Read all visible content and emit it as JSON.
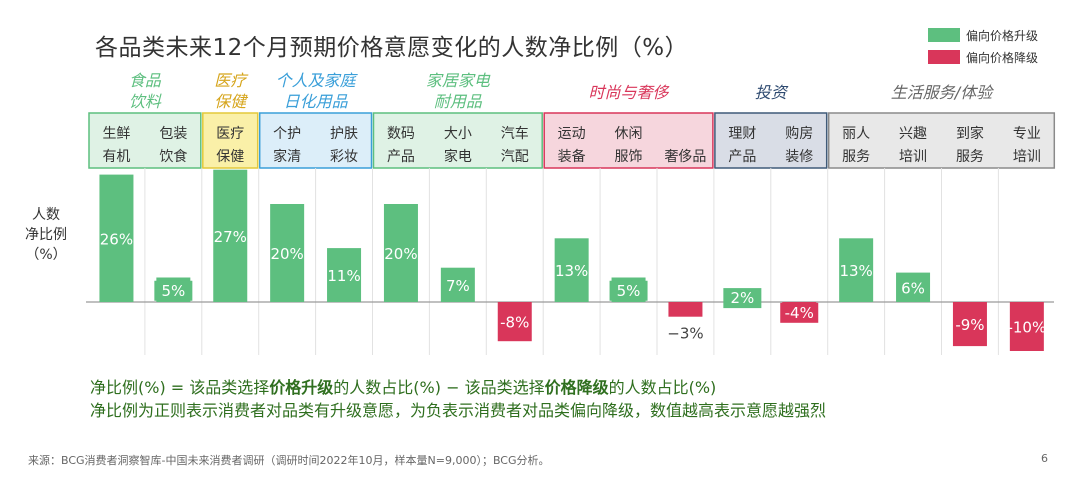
{
  "title": "各品类未来12个月预期价格意愿变化的人数净比例（%）",
  "legend": [
    {
      "label": "偏向价格升级",
      "color": "#5dbf7f"
    },
    {
      "label": "偏向价格降级",
      "color": "#d9365a"
    }
  ],
  "ylabel": {
    "line1": "人数",
    "line2": "净比例",
    "line3": "（%）"
  },
  "formula": {
    "line1_a": "净比例(%) = 该品类选择",
    "line1_b": "价格升级",
    "line1_c": "的人数占比(%) − 该品类选择",
    "line1_d": "价格降级",
    "line1_e": "的人数占比(%)",
    "line2": "净比例为正则表示消费者对品类有升级意愿，为负表示消费者对品类偏向降级，数值越高表示意愿越强烈"
  },
  "source": "来源：BCG消费者洞察智库-中国未来消费者调研（调研时间2022年10月，样本量N=9,000）；BCG分析。",
  "page_number": "6",
  "chart_data": {
    "type": "bar",
    "title": "各品类未来12个月预期价格意愿变化的人数净比例（%）",
    "ylabel": "人数净比例（%）",
    "ylim": [
      -12,
      30
    ],
    "positive_color": "#5dbf7f",
    "negative_color": "#d9365a",
    "groups": [
      {
        "name": [
          "食品",
          "饮料"
        ],
        "color": "#5dbf7f",
        "fill": "#dff2e5",
        "name_color": "#5dbf7f",
        "count": 2
      },
      {
        "name": [
          "医疗",
          "保健"
        ],
        "color": "#e3c93a",
        "fill": "#faf0a8",
        "name_color": "#d6a51c",
        "count": 1
      },
      {
        "name": [
          "个人及家庭",
          "日化用品"
        ],
        "color": "#3a9fd9",
        "fill": "#dceef9",
        "name_color": "#3a9fd9",
        "count": 2
      },
      {
        "name": [
          "家居家电",
          "耐用品"
        ],
        "color": "#5dbf7f",
        "fill": "#dff2e5",
        "name_color": "#5dbf7f",
        "count": 3
      },
      {
        "name": [
          "时尚与奢侈"
        ],
        "color": "#d9365a",
        "fill": "#f6d6dd",
        "name_color": "#d9365a",
        "count": 3
      },
      {
        "name": [
          "投资"
        ],
        "color": "#3f5a78",
        "fill": "#d9dde6",
        "name_color": "#2e4a70",
        "count": 2
      },
      {
        "name": [
          "生活服务/体验"
        ],
        "color": "#8a8a8a",
        "fill": "#e8e8e8",
        "name_color": "#666666",
        "count": 4
      }
    ],
    "categories": [
      {
        "name": [
          "生鲜",
          "有机"
        ],
        "value": 26,
        "label": "26%"
      },
      {
        "name": [
          "包装",
          "饮食"
        ],
        "value": 5,
        "label": "5%"
      },
      {
        "name": [
          "医疗",
          "保健"
        ],
        "value": 27,
        "label": "27%"
      },
      {
        "name": [
          "个护",
          "家清"
        ],
        "value": 20,
        "label": "20%"
      },
      {
        "name": [
          "护肤",
          "彩妆"
        ],
        "value": 11,
        "label": "11%"
      },
      {
        "name": [
          "数码",
          "产品"
        ],
        "value": 20,
        "label": "20%"
      },
      {
        "name": [
          "大小",
          "家电"
        ],
        "value": 7,
        "label": "7%"
      },
      {
        "name": [
          "汽车",
          "汽配"
        ],
        "value": -8,
        "label": "-8%"
      },
      {
        "name": [
          "运动",
          "装备"
        ],
        "value": 13,
        "label": "13%"
      },
      {
        "name": [
          "休闲",
          "服饰"
        ],
        "value": 5,
        "label": "5%"
      },
      {
        "name": [
          "奢侈品"
        ],
        "value": -3,
        "label": "−3%"
      },
      {
        "name": [
          "理财",
          "产品"
        ],
        "value": 2,
        "label": "2%"
      },
      {
        "name": [
          "购房",
          "装修"
        ],
        "value": -4,
        "label": "-4%"
      },
      {
        "name": [
          "丽人",
          "服务"
        ],
        "value": 13,
        "label": "13%"
      },
      {
        "name": [
          "兴趣",
          "培训"
        ],
        "value": 6,
        "label": "6%"
      },
      {
        "name": [
          "到家",
          "服务"
        ],
        "value": -9,
        "label": "-9%"
      },
      {
        "name": [
          "专业",
          "培训"
        ],
        "value": -10,
        "label": "-10%"
      }
    ]
  }
}
